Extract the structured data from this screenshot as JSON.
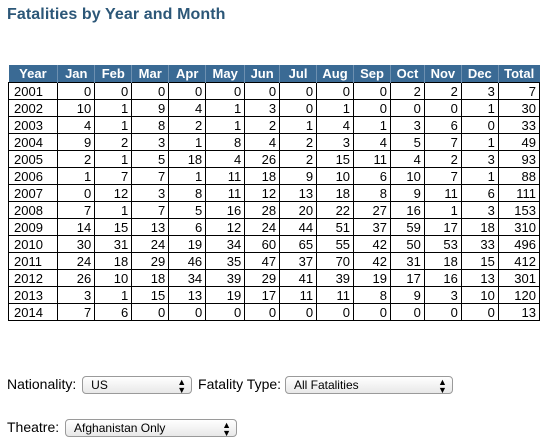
{
  "title": "Fatalities by Year and Month",
  "table": {
    "headers": [
      "Year",
      "Jan",
      "Feb",
      "Mar",
      "Apr",
      "May",
      "Jun",
      "Jul",
      "Aug",
      "Sep",
      "Oct",
      "Nov",
      "Dec",
      "Total"
    ],
    "rows": [
      [
        "2001",
        "0",
        "0",
        "0",
        "0",
        "0",
        "0",
        "0",
        "0",
        "0",
        "2",
        "2",
        "3",
        "7"
      ],
      [
        "2002",
        "10",
        "1",
        "9",
        "4",
        "1",
        "3",
        "0",
        "1",
        "0",
        "0",
        "0",
        "1",
        "30"
      ],
      [
        "2003",
        "4",
        "1",
        "8",
        "2",
        "1",
        "2",
        "1",
        "4",
        "1",
        "3",
        "6",
        "0",
        "33"
      ],
      [
        "2004",
        "9",
        "2",
        "3",
        "1",
        "8",
        "4",
        "2",
        "3",
        "4",
        "5",
        "7",
        "1",
        "49"
      ],
      [
        "2005",
        "2",
        "1",
        "5",
        "18",
        "4",
        "26",
        "2",
        "15",
        "11",
        "4",
        "2",
        "3",
        "93"
      ],
      [
        "2006",
        "1",
        "7",
        "7",
        "1",
        "11",
        "18",
        "9",
        "10",
        "6",
        "10",
        "7",
        "1",
        "88"
      ],
      [
        "2007",
        "0",
        "12",
        "3",
        "8",
        "11",
        "12",
        "13",
        "18",
        "8",
        "9",
        "11",
        "6",
        "111"
      ],
      [
        "2008",
        "7",
        "1",
        "7",
        "5",
        "16",
        "28",
        "20",
        "22",
        "27",
        "16",
        "1",
        "3",
        "153"
      ],
      [
        "2009",
        "14",
        "15",
        "13",
        "6",
        "12",
        "24",
        "44",
        "51",
        "37",
        "59",
        "17",
        "18",
        "310"
      ],
      [
        "2010",
        "30",
        "31",
        "24",
        "19",
        "34",
        "60",
        "65",
        "55",
        "42",
        "50",
        "53",
        "33",
        "496"
      ],
      [
        "2011",
        "24",
        "18",
        "29",
        "46",
        "35",
        "47",
        "37",
        "70",
        "42",
        "31",
        "18",
        "15",
        "412"
      ],
      [
        "2012",
        "26",
        "10",
        "18",
        "34",
        "39",
        "29",
        "41",
        "39",
        "19",
        "17",
        "16",
        "13",
        "301"
      ],
      [
        "2013",
        "3",
        "1",
        "15",
        "13",
        "19",
        "17",
        "11",
        "11",
        "8",
        "9",
        "3",
        "10",
        "120"
      ],
      [
        "2014",
        "7",
        "6",
        "0",
        "0",
        "0",
        "0",
        "0",
        "0",
        "0",
        "0",
        "0",
        "0",
        "13"
      ]
    ]
  },
  "filters": {
    "nationality_label": "Nationality:",
    "nationality_value": "US",
    "fatality_type_label": "Fatality Type:",
    "fatality_type_value": "All Fatalities",
    "theatre_label": "Theatre:",
    "theatre_value": "Afghanistan Only"
  }
}
